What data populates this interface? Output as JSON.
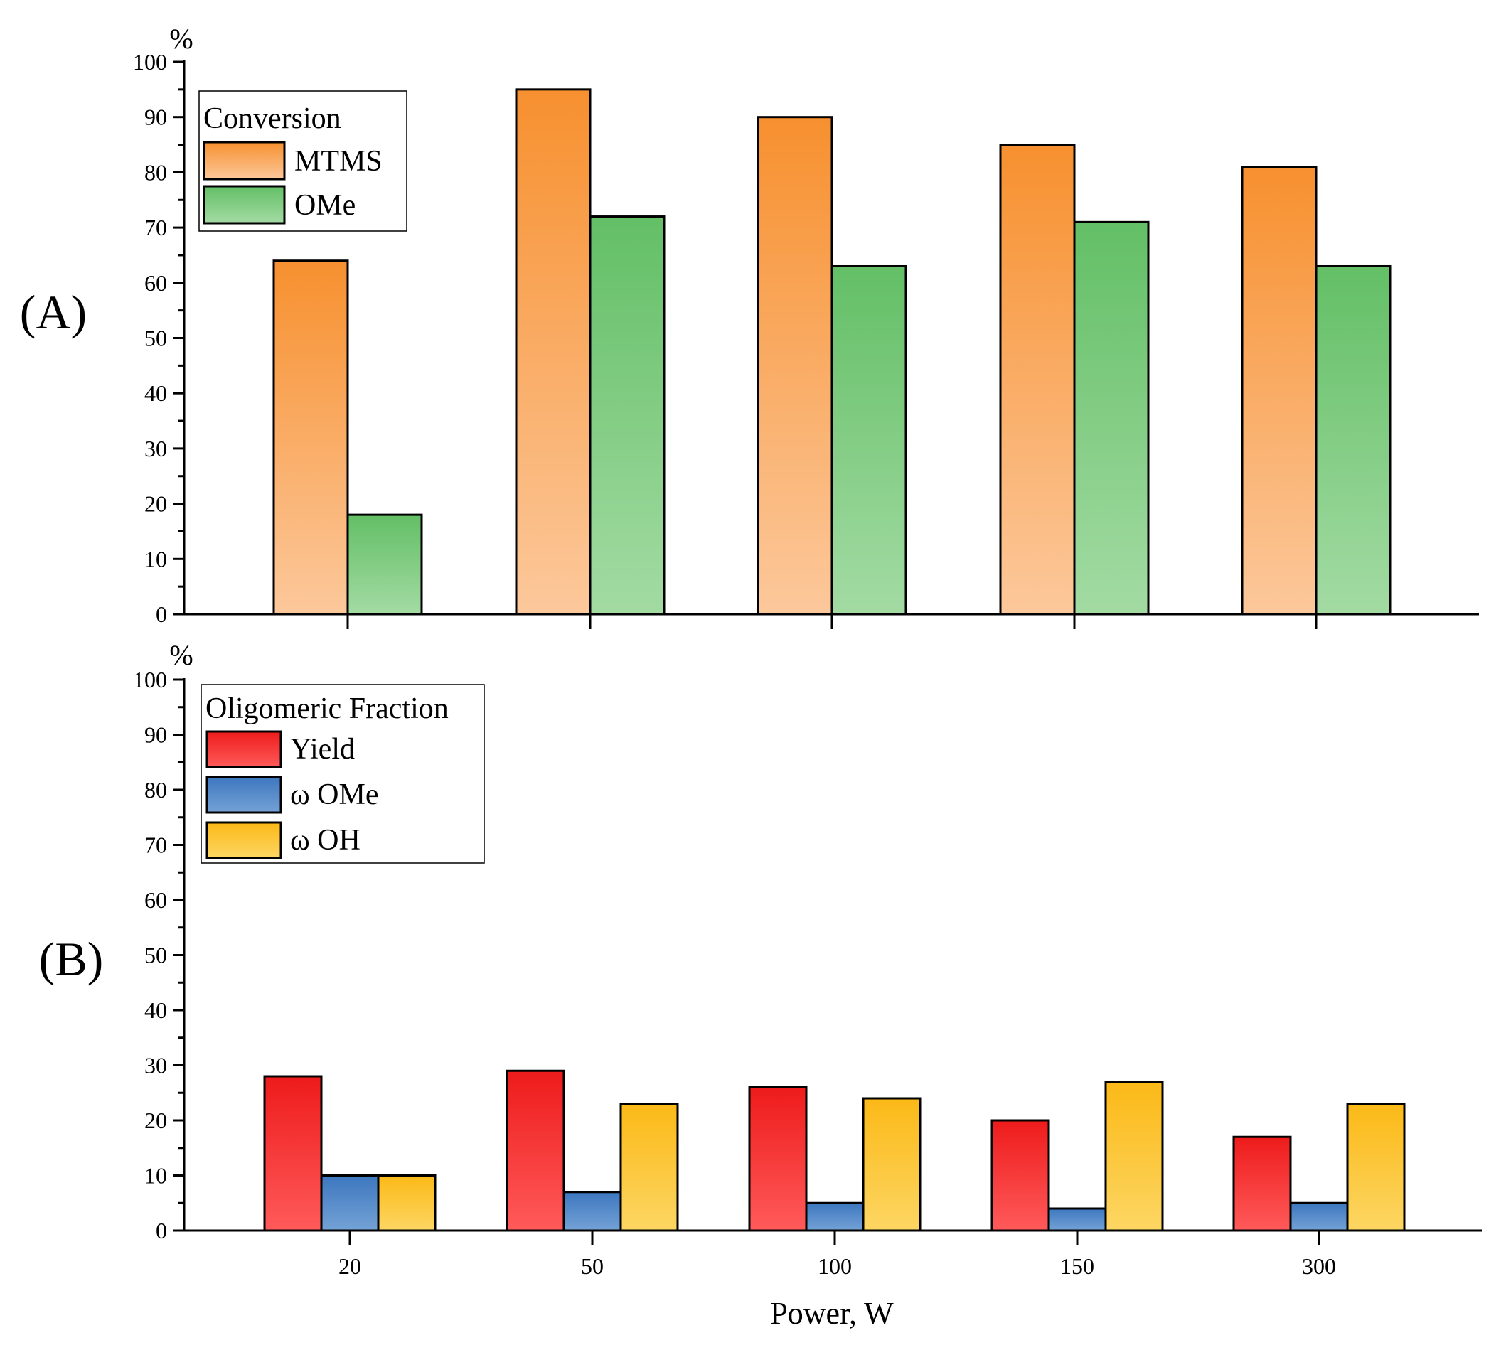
{
  "figure": {
    "xlabel": "Power, W"
  },
  "chart_data": [
    {
      "type": "bar",
      "panel_label": "(A)",
      "ylabel": "%",
      "legend_title": "Conversion",
      "legend_position": "top-left",
      "categories": [
        "20",
        "50",
        "100",
        "150",
        "300"
      ],
      "show_category_labels": false,
      "ylim": [
        0,
        100
      ],
      "yticks": [
        "0",
        "10",
        "20",
        "30",
        "40",
        "50",
        "60",
        "70",
        "80",
        "90",
        "100"
      ],
      "grid": false,
      "series": [
        {
          "name": "MTMS",
          "values": [
            64,
            95,
            90,
            85,
            81
          ],
          "color_top": "#f7902f",
          "color_bottom": "#fcc89b"
        },
        {
          "name": "OMe",
          "values": [
            18,
            72,
            63,
            71,
            63
          ],
          "color_top": "#63bf66",
          "color_bottom": "#a3dba3"
        }
      ]
    },
    {
      "type": "bar",
      "panel_label": "(B)",
      "ylabel": "%",
      "legend_title": "Oligomeric Fraction",
      "legend_position": "top-left",
      "categories": [
        "20",
        "50",
        "100",
        "150",
        "300"
      ],
      "show_category_labels": true,
      "ylim": [
        0,
        100
      ],
      "yticks": [
        "0",
        "10",
        "20",
        "30",
        "40",
        "50",
        "60",
        "70",
        "80",
        "90",
        "100"
      ],
      "grid": false,
      "series": [
        {
          "name": "Yield",
          "values": [
            28,
            29,
            26,
            20,
            17
          ],
          "color_top": "#ee1b1b",
          "color_bottom": "#ff5a5a"
        },
        {
          "name": "ω OMe",
          "values": [
            10,
            7,
            5,
            4,
            5
          ],
          "color_top": "#3d77bf",
          "color_bottom": "#74a2d6"
        },
        {
          "name": "ω OH",
          "values": [
            10,
            23,
            24,
            27,
            23
          ],
          "color_top": "#fbb917",
          "color_bottom": "#fdd663"
        }
      ]
    }
  ]
}
